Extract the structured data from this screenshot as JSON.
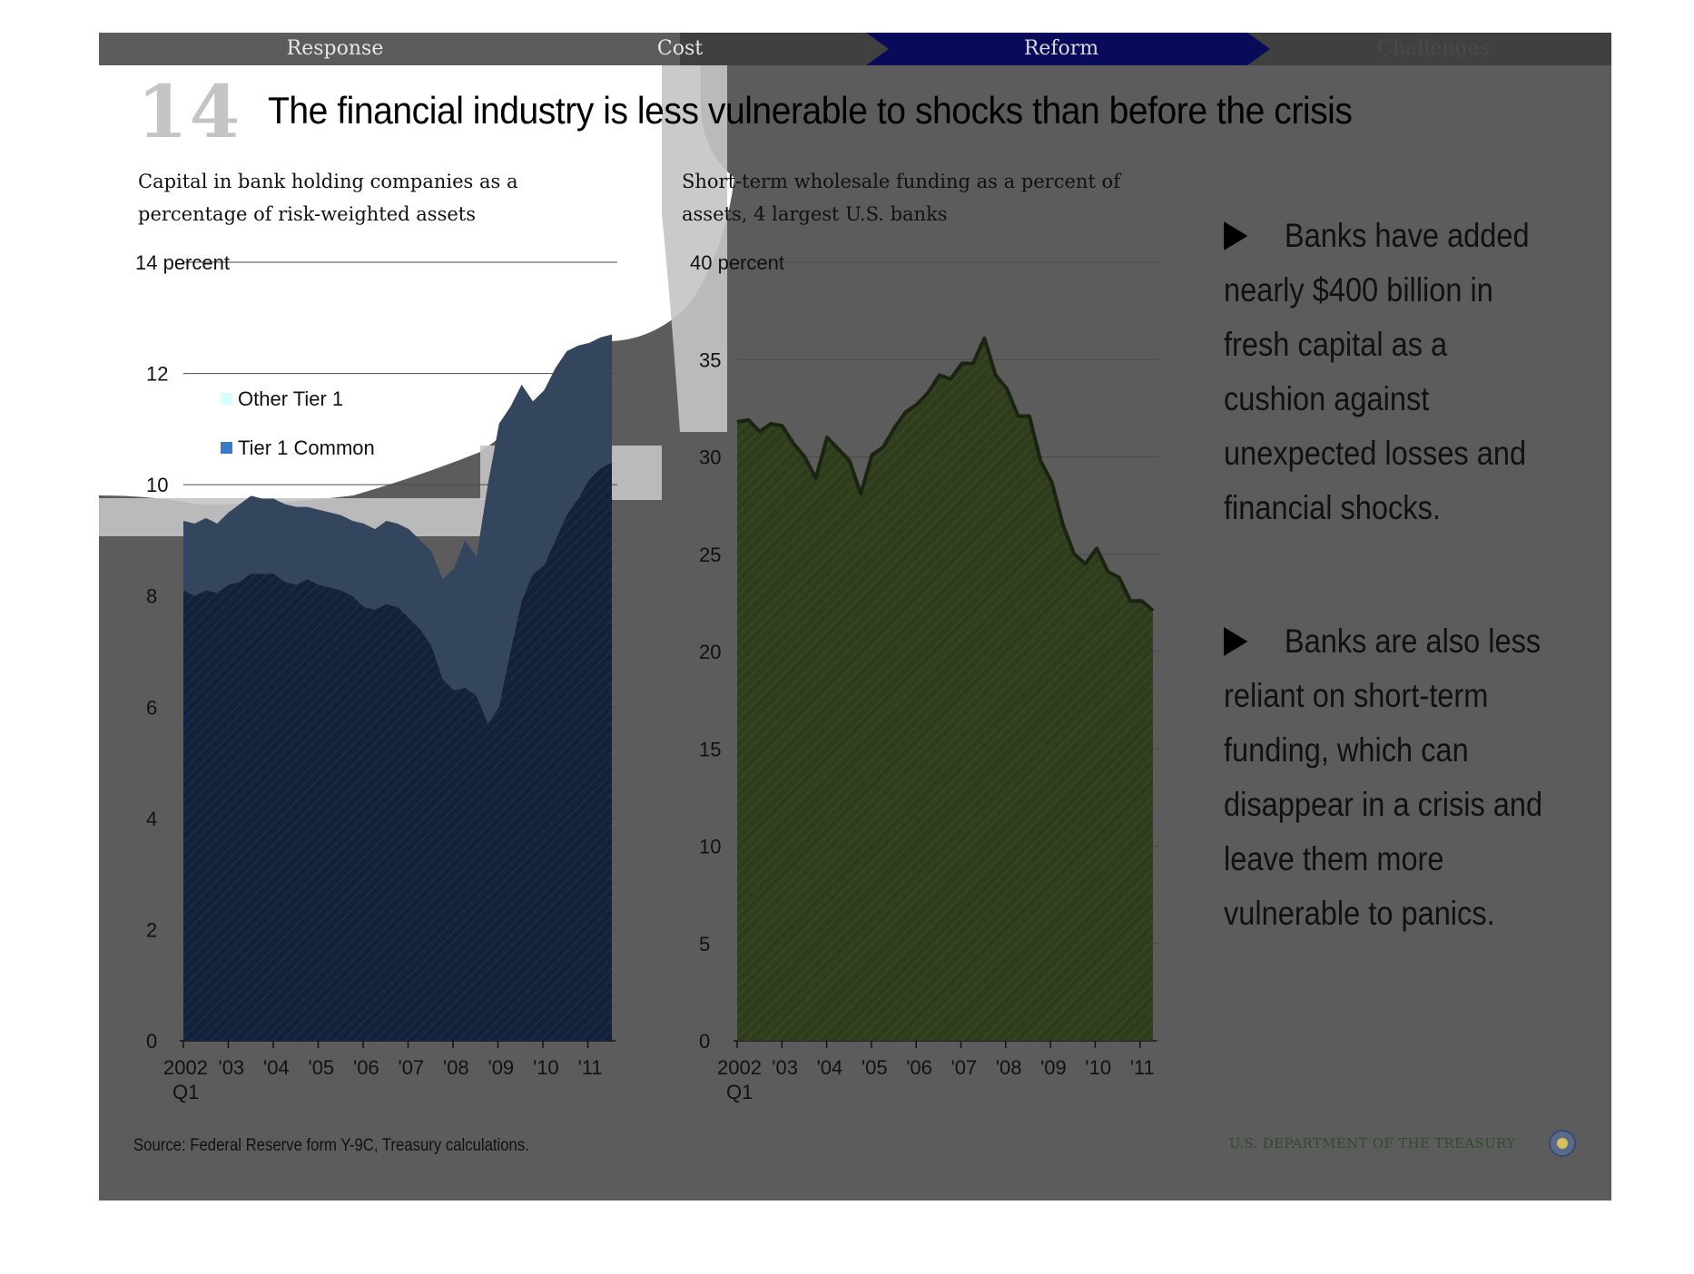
{
  "nav": {
    "items": [
      "Response",
      "Cost",
      "Reform",
      "Challenges"
    ],
    "active": "Reform"
  },
  "slide_number": "14",
  "headline": "The financial industry is less vulnerable to shocks than before the crisis",
  "colors": {
    "background": "#5c5c5c",
    "nav_active": "#0a0a5a",
    "tier1_common": "#13213a",
    "other_tier1": "#34465e",
    "funding": "#2f3d1c",
    "legend_other_tier1": "#d6ffff",
    "legend_tier1_common": "#3a78c8"
  },
  "source": "Source: Federal Reserve form Y-9C, Treasury calculations.",
  "treasury_label": "U.S. DEPARTMENT OF THE TREASURY",
  "bullets": [
    "Banks have added nearly  $400 billion in fresh capital as a cushion against unexpected losses and financial shocks.",
    "Banks are also less reliant on short-term funding, which can disappear in a crisis and leave them more vulnerable to panics."
  ],
  "chart_data": [
    {
      "type": "area",
      "stacked": true,
      "title": "Capital in bank holding companies as a percentage of risk-weighted assets",
      "unit_label": "14 percent",
      "ylim": [
        0,
        14
      ],
      "yticks": [
        "0",
        "2",
        "4",
        "6",
        "8",
        "10",
        "12"
      ],
      "xticks": [
        "2002",
        "'03",
        "'04",
        "'05",
        "'06",
        "'07",
        "'08",
        "'09",
        "'10",
        "'11"
      ],
      "xtick_sublabel": "Q1",
      "x_start": "2002 Q1",
      "series": [
        {
          "name": "Tier 1 Common",
          "values": [
            8.1,
            8.0,
            8.1,
            8.05,
            8.2,
            8.25,
            8.4,
            8.4,
            8.4,
            8.25,
            8.2,
            8.3,
            8.2,
            8.15,
            8.1,
            8.0,
            7.8,
            7.75,
            7.85,
            7.8,
            7.6,
            7.4,
            7.1,
            6.5,
            6.3,
            6.35,
            6.2,
            5.7,
            6.0,
            7.0,
            7.9,
            8.4,
            8.55,
            9.0,
            9.45,
            9.75,
            10.1,
            10.3,
            10.4
          ]
        },
        {
          "name": "Other Tier 1",
          "values": [
            1.25,
            1.3,
            1.3,
            1.25,
            1.3,
            1.4,
            1.4,
            1.35,
            1.35,
            1.4,
            1.4,
            1.3,
            1.35,
            1.35,
            1.35,
            1.35,
            1.5,
            1.45,
            1.5,
            1.5,
            1.6,
            1.6,
            1.7,
            1.8,
            2.2,
            2.65,
            2.5,
            4.3,
            5.1,
            4.4,
            3.9,
            3.1,
            3.15,
            3.1,
            2.95,
            2.75,
            2.45,
            2.35,
            2.3
          ]
        }
      ]
    },
    {
      "type": "area",
      "title": "Short-term wholesale funding as a percent of assets, 4 largest U.S. banks",
      "unit_label": "40 percent",
      "ylim": [
        0,
        40
      ],
      "yticks": [
        "0",
        "5",
        "10",
        "15",
        "20",
        "25",
        "30",
        "35"
      ],
      "xticks": [
        "2002",
        "'03",
        "'04",
        "'05",
        "'06",
        "'07",
        "'08",
        "'09",
        "'10",
        "'11"
      ],
      "xtick_sublabel": "Q1",
      "x_start": "2002 Q1",
      "series": [
        {
          "name": "Short-term wholesale funding",
          "values": [
            31.8,
            31.9,
            31.3,
            31.7,
            31.6,
            30.7,
            30.0,
            28.9,
            31.0,
            30.4,
            29.8,
            28.1,
            30.1,
            30.5,
            31.5,
            32.3,
            32.7,
            33.3,
            34.2,
            34.0,
            34.8,
            34.8,
            36.1,
            34.2,
            33.5,
            32.1,
            32.1,
            29.8,
            28.7,
            26.5,
            25.0,
            24.5,
            25.3,
            24.1,
            23.8,
            22.6,
            22.6,
            22.1
          ]
        }
      ]
    }
  ],
  "legend": [
    "Other Tier 1",
    "Tier 1 Common"
  ]
}
